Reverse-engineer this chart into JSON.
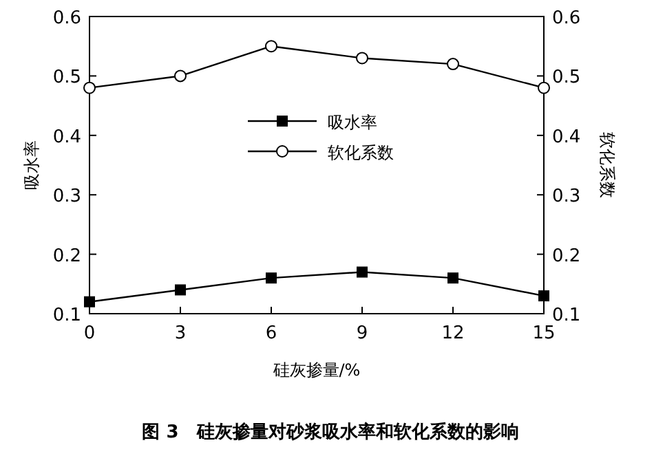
{
  "chart_data": {
    "type": "line",
    "title": "图 3　硅灰掺量对砂浆吸水率和软化系数的影响",
    "xlabel": "硅灰掺量/%",
    "ylabel": "吸水率",
    "y2label": "软化系数",
    "x": [
      0,
      3,
      6,
      9,
      12,
      15
    ],
    "xlim": [
      0,
      15
    ],
    "xticks": [
      0,
      3,
      6,
      9,
      12,
      15
    ],
    "ylim": [
      0.1,
      0.6
    ],
    "yticks": [
      0.1,
      0.2,
      0.3,
      0.4,
      0.5,
      0.6
    ],
    "y2lim": [
      0.1,
      0.6
    ],
    "y2ticks": [
      0.1,
      0.2,
      0.3,
      0.4,
      0.5,
      0.6
    ],
    "legend": "center",
    "grid": false,
    "series": [
      {
        "name": "吸水率",
        "color": "#000000",
        "marker": "square",
        "values": [
          0.12,
          0.14,
          0.16,
          0.17,
          0.16,
          0.13
        ]
      },
      {
        "name": "软化系数",
        "color": "#000000",
        "marker": "circle",
        "axis": "y2",
        "values": [
          0.48,
          0.5,
          0.55,
          0.53,
          0.52,
          0.48
        ]
      }
    ]
  }
}
